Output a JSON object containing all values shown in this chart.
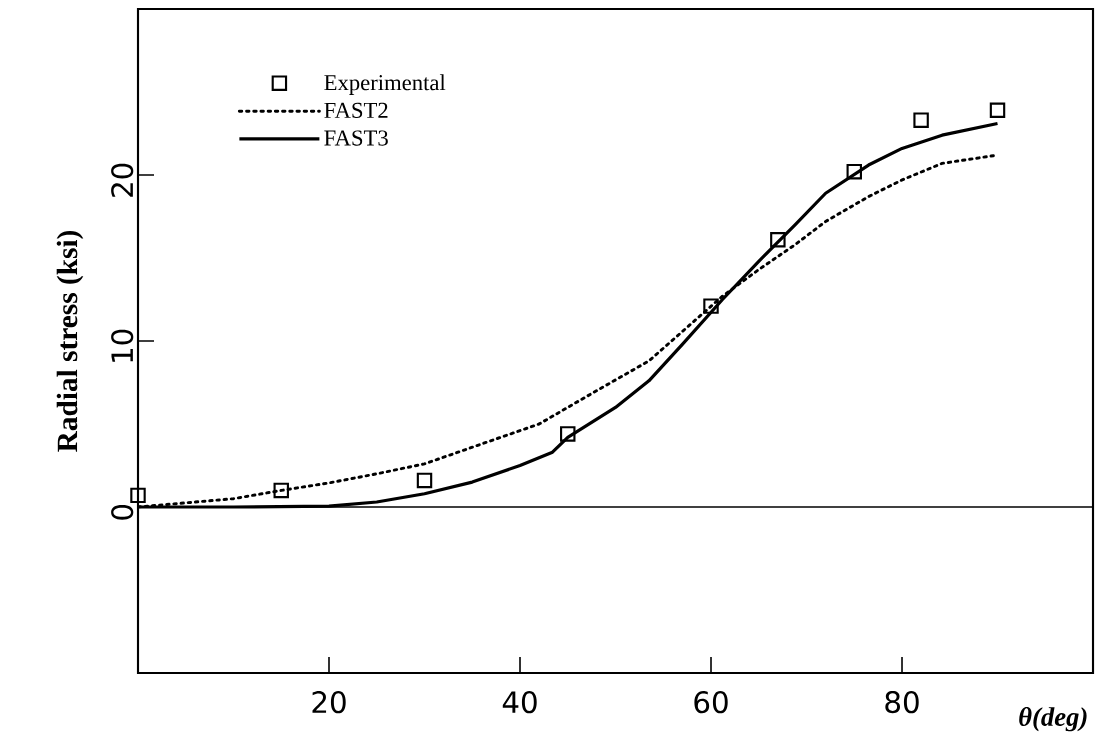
{
  "chart_data": {
    "type": "line",
    "xlabel": "θ(deg)",
    "ylabel": "Radial stress (ksi)",
    "xlim": [
      0,
      100
    ],
    "ylim": [
      -10,
      30
    ],
    "xticks": [
      20,
      40,
      60,
      80
    ],
    "yticks": [
      0,
      10,
      20
    ],
    "grid": false,
    "legend": "top left",
    "ref_lines": [
      {
        "axis": "y",
        "value": 0,
        "color": "#000000",
        "line_style": "solid"
      }
    ],
    "series": [
      {
        "name": "Experimental",
        "type": "scatter",
        "marker": "square",
        "color": "#000000",
        "x": [
          0,
          15,
          30,
          45,
          60,
          67,
          75,
          82,
          90
        ],
        "values": [
          0.7,
          1.0,
          1.6,
          4.4,
          12.1,
          16.1,
          20.2,
          23.3,
          23.9
        ]
      },
      {
        "name": "FAST2",
        "line_style": "dotted",
        "marker": "none",
        "color": "#000000",
        "x": [
          0,
          10,
          15,
          20,
          25,
          30,
          35,
          40,
          42,
          48,
          53.5,
          61.2,
          65,
          68.8,
          72,
          76.5,
          80,
          84.2,
          90
        ],
        "values": [
          0,
          0.5,
          1.0,
          1.45,
          2.0,
          2.6,
          3.6,
          4.6,
          5.0,
          7.0,
          8.8,
          12.7,
          14.3,
          15.8,
          17.2,
          18.7,
          19.7,
          20.7,
          21.2
        ]
      },
      {
        "name": "FAST3",
        "line_style": "solid",
        "marker": "none",
        "color": "#000000",
        "x": [
          0,
          10,
          20,
          25,
          30,
          35,
          40,
          43.4,
          45,
          50,
          53.5,
          57,
          61.2,
          65,
          68.8,
          72,
          76.5,
          80,
          84.2,
          90
        ],
        "values": [
          0,
          0,
          0.05,
          0.3,
          0.8,
          1.5,
          2.5,
          3.3,
          4.2,
          6.0,
          7.6,
          9.8,
          12.5,
          14.8,
          17.0,
          18.9,
          20.6,
          21.6,
          22.4,
          23.1
        ]
      }
    ]
  }
}
